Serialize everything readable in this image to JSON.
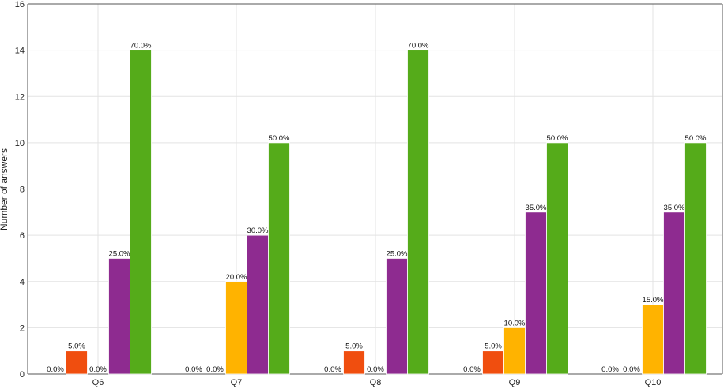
{
  "chart_data": {
    "type": "bar",
    "title": "",
    "xlabel": "",
    "ylabel": "Number of answers",
    "ylim": [
      0,
      16
    ],
    "yticks": [
      "0",
      "2",
      "4",
      "6",
      "8",
      "10",
      "12",
      "14",
      "16"
    ],
    "grid": true,
    "legend": "none",
    "categories": [
      "Q6",
      "Q7",
      "Q8",
      "Q9",
      "Q10"
    ],
    "series": [
      {
        "color": "#f04e0f",
        "values": [
          1,
          0,
          1,
          1,
          0
        ],
        "labels": [
          "5.0%",
          "0.0%",
          "5.0%",
          "5.0%",
          "0.0%"
        ]
      },
      {
        "color": "#ffb300",
        "values": [
          0,
          4,
          0,
          2,
          3
        ],
        "labels": [
          "0.0%",
          "20.0%",
          "0.0%",
          "10.0%",
          "15.0%"
        ]
      },
      {
        "color": "#8e2b90",
        "values": [
          5,
          6,
          5,
          7,
          7
        ],
        "labels": [
          "25.0%",
          "30.0%",
          "25.0%",
          "35.0%",
          "35.0%"
        ]
      },
      {
        "color": "#55ab1a",
        "values": [
          14,
          10,
          14,
          10,
          10
        ],
        "labels": [
          "70.0%",
          "50.0%",
          "70.0%",
          "50.0%",
          "50.0%"
        ]
      }
    ],
    "leading_labels": [
      "0.0%",
      "0.0%",
      "0.0%",
      "0.0%",
      "0.0%"
    ]
  }
}
